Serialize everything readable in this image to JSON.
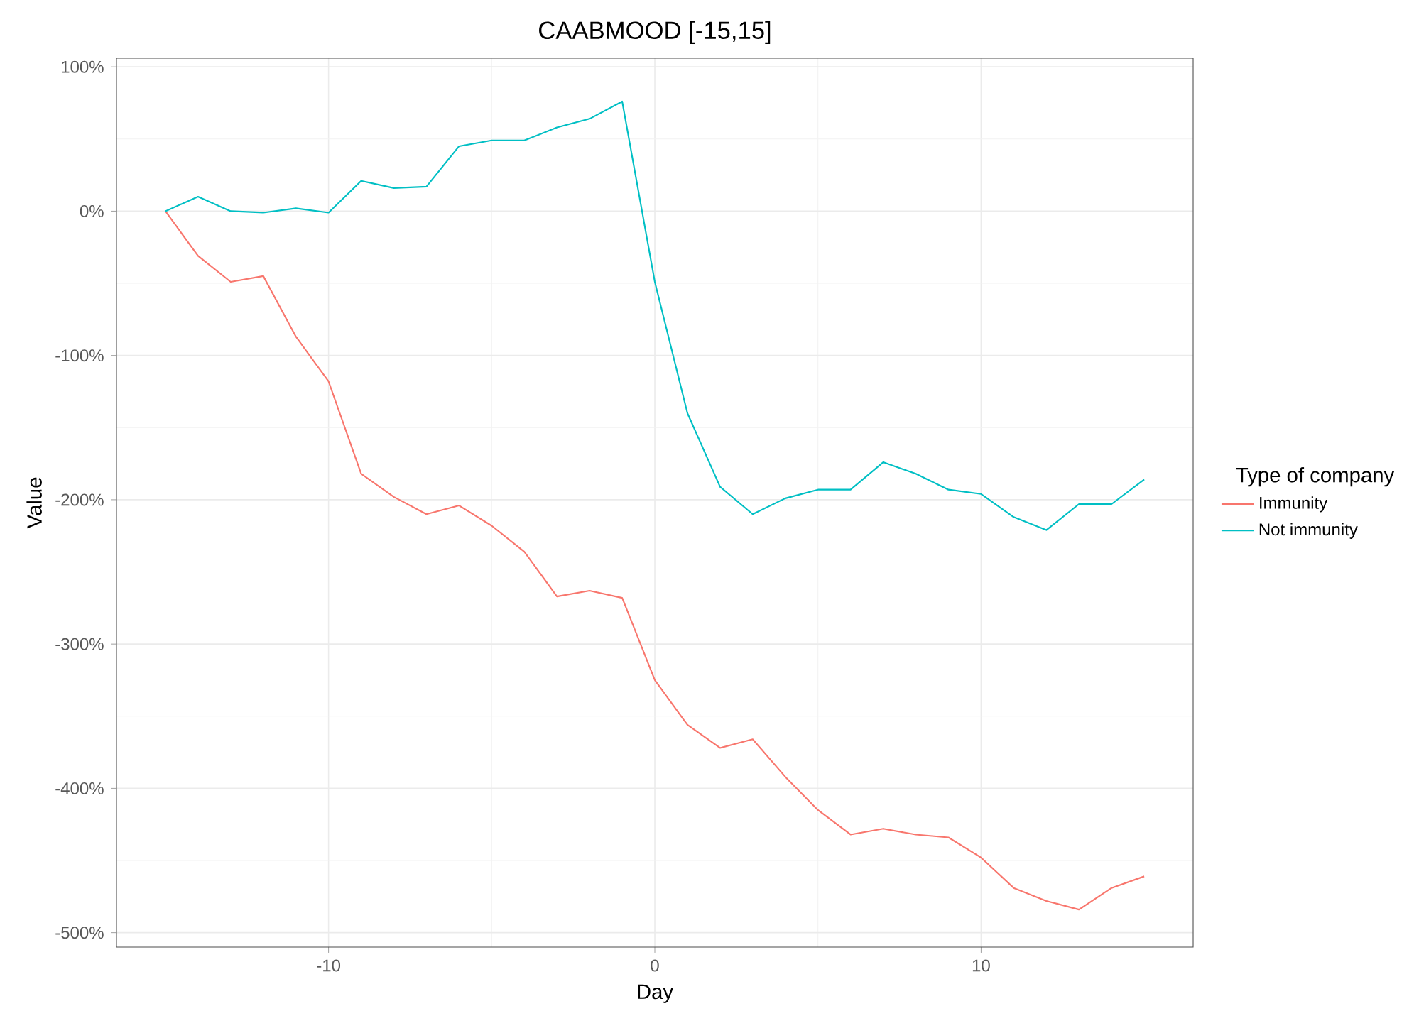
{
  "chart_data": {
    "type": "line",
    "title": "CAABMOOD [-15,15]",
    "xlabel": "Day",
    "ylabel": "Value",
    "legend_title": "Type of company",
    "legend": "right",
    "grid": true,
    "x": [
      -15,
      -14,
      -13,
      -12,
      -11,
      -10,
      -9,
      -8,
      -7,
      -6,
      -5,
      -4,
      -3,
      -2,
      -1,
      0,
      1,
      2,
      3,
      4,
      5,
      6,
      7,
      8,
      9,
      10,
      11,
      12,
      13,
      14,
      15
    ],
    "xlim": [
      -16.5,
      16.5
    ],
    "xticks": [
      -10,
      0,
      10
    ],
    "ylim": [
      -510,
      106
    ],
    "yticks": [
      {
        "value": -500,
        "label": "-500%"
      },
      {
        "value": -400,
        "label": "-400%"
      },
      {
        "value": -300,
        "label": "-300%"
      },
      {
        "value": -200,
        "label": "-200%"
      },
      {
        "value": -100,
        "label": "-100%"
      },
      {
        "value": 0,
        "label": "0%"
      },
      {
        "value": 100,
        "label": "100%"
      }
    ],
    "series": [
      {
        "name": "Immunity",
        "color": "#f8766d",
        "values": [
          0,
          -31,
          -49,
          -45,
          -87,
          -118,
          -182,
          -198,
          -210,
          -204,
          -218,
          -236,
          -267,
          -263,
          -268,
          -325,
          -356,
          -372,
          -366,
          -392,
          -415,
          -432,
          -428,
          -432,
          -434,
          -448,
          -469,
          -478,
          -484,
          -469,
          -461
        ]
      },
      {
        "name": "Not immunity",
        "color": "#00bfc4",
        "values": [
          0,
          10,
          0,
          -1,
          2,
          -1,
          21,
          16,
          17,
          45,
          49,
          49,
          58,
          64,
          76,
          -49,
          -140,
          -191,
          -210,
          -199,
          -193,
          -193,
          -174,
          -182,
          -193,
          -196,
          -212,
          -221,
          -203,
          -203,
          -186
        ]
      }
    ]
  }
}
